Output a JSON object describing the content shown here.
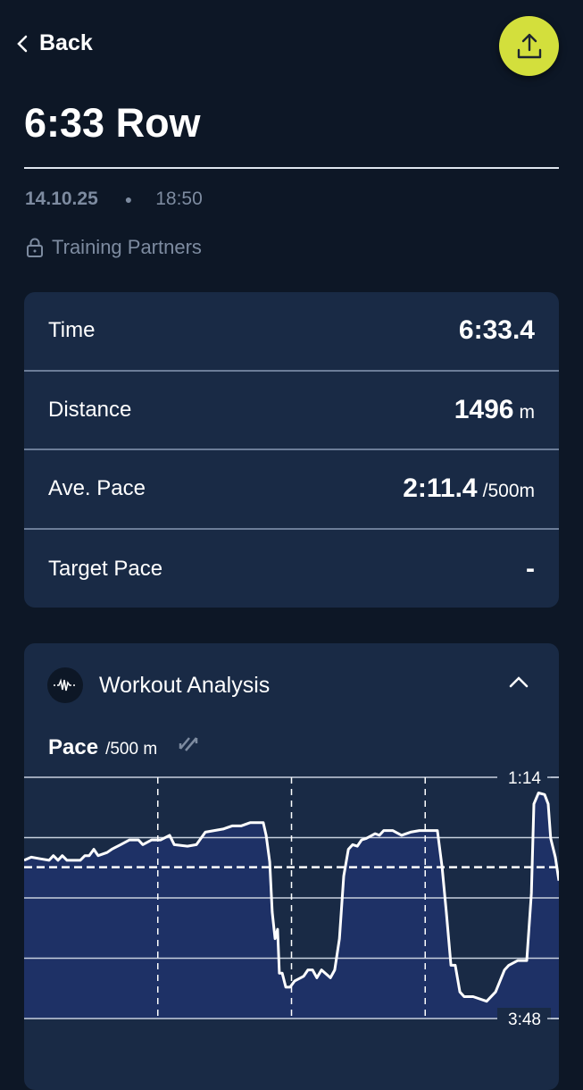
{
  "nav": {
    "back_label": "Back",
    "share_icon": "share-upload-icon",
    "share_color": "#d3df3c"
  },
  "workout": {
    "title": "6:33 Row",
    "date": "14.10.25",
    "time": "18:50",
    "privacy": "Training Partners"
  },
  "stats": [
    {
      "label": "Time",
      "value": "6:33.4",
      "unit": ""
    },
    {
      "label": "Distance",
      "value": "1496",
      "unit": "m"
    },
    {
      "label": "Ave. Pace",
      "value": "2:11.4",
      "unit": "/500m"
    },
    {
      "label": "Target Pace",
      "value": "-",
      "unit": ""
    }
  ],
  "analysis": {
    "title": "Workout Analysis",
    "metric": "Pace",
    "metric_unit": "/500 m"
  },
  "chart_data": {
    "type": "area",
    "xlabel": "",
    "ylabel": "",
    "x_unit": "m",
    "y_unit": "s/500m",
    "xlim": [
      0,
      1496
    ],
    "ylim": [
      74,
      228
    ],
    "y_inverted": true,
    "y_tick_labels": [
      {
        "value": 74,
        "label": "1:14"
      },
      {
        "value": 228,
        "label": "3:48"
      }
    ],
    "y_gridlines": [
      74,
      112.5,
      151,
      189.5,
      228
    ],
    "x_dashed_dividers": [
      374,
      748,
      1122
    ],
    "average_line": 131.4,
    "grid": true,
    "line_color": "#ffffff",
    "fill_color": "#1e3166",
    "x": [
      0,
      20,
      45,
      70,
      82,
      95,
      107,
      120,
      157,
      170,
      182,
      195,
      207,
      232,
      245,
      270,
      295,
      320,
      332,
      357,
      382,
      407,
      420,
      457,
      482,
      507,
      532,
      557,
      582,
      607,
      632,
      669,
      677,
      687,
      694,
      702,
      709,
      714,
      722,
      732,
      744,
      757,
      782,
      794,
      807,
      819,
      832,
      857,
      869,
      882,
      894,
      907,
      919,
      932,
      944,
      957,
      982,
      994,
      1006,
      1031,
      1056,
      1081,
      1106,
      1156,
      1169,
      1181,
      1194,
      1206,
      1219,
      1231,
      1256,
      1294,
      1319,
      1344,
      1356,
      1381,
      1406,
      1419,
      1426,
      1439,
      1456,
      1466,
      1473,
      1486,
      1496
    ],
    "y": [
      127,
      125,
      126,
      127,
      124,
      127,
      124,
      127,
      127,
      124,
      124,
      120,
      124,
      122,
      120,
      117,
      114,
      114,
      117,
      114,
      114,
      111,
      117,
      118,
      117,
      109,
      108,
      107,
      105,
      105,
      103,
      103,
      111,
      128,
      160,
      177,
      171,
      199,
      199,
      208,
      208,
      204,
      201,
      197,
      197,
      202,
      197,
      202,
      197,
      177,
      137,
      120,
      117,
      118,
      114,
      113,
      110,
      111,
      108,
      108,
      111,
      109,
      108,
      108,
      131,
      160,
      194,
      194,
      211,
      214,
      214,
      217,
      211,
      197,
      194,
      191,
      191,
      148,
      91,
      84,
      85,
      91,
      113,
      125,
      140
    ]
  }
}
